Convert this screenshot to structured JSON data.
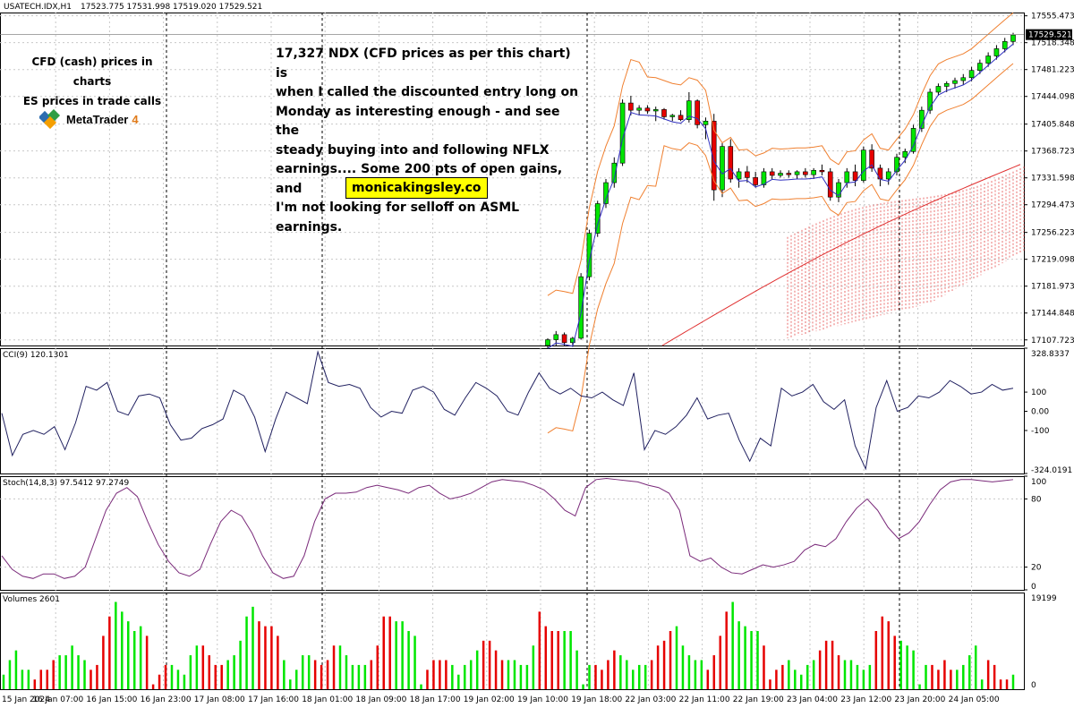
{
  "header": {
    "symbol": "USATECH.IDX,H1",
    "ohlc": "17523.775 17531.998 17519.020 17529.521"
  },
  "annotations": {
    "left_line1": "CFD (cash) prices in charts",
    "left_line2": "ES prices in trade calls",
    "logo_text": "MetaTrader",
    "logo_num": "4",
    "big_note_lines": [
      "17,327 NDX (CFD prices as per this chart) is",
      "when I called the discounted entry long on",
      "Monday as interesting enough - and see the",
      "steady buying into and following NFLX",
      "earnings.... Some 200 pts of open gains, and",
      "I'm not looking for selloff on ASML earnings."
    ],
    "website": "monicakingsley.co"
  },
  "colors": {
    "bull": "#00e600",
    "bear": "#e60000",
    "band": "#f08030",
    "ma_fast": "#3030c0",
    "ma_slow": "#e03030",
    "cloud": "#e03030",
    "cci": "#202060",
    "stoch": "#7a2a7a",
    "grid": "#c8c8c8"
  },
  "chart_data": [
    {
      "type": "candlestick",
      "panel": "price",
      "current_price": "17529.521",
      "y_ticks": [
        "17555.473",
        "17518.348",
        "17481.223",
        "17444.098",
        "17405.848",
        "17368.723",
        "17331.598",
        "17294.473",
        "17256.223",
        "17219.098",
        "17181.973",
        "17144.848",
        "17107.723"
      ],
      "ylim": [
        17100,
        17560
      ],
      "x_ticks": [
        "15 Jan 2024",
        "16 Jan 07:00",
        "16 Jan 15:00",
        "16 Jan 23:00",
        "17 Jan 08:00",
        "17 Jan 16:00",
        "18 Jan 01:00",
        "18 Jan 09:00",
        "18 Jan 17:00",
        "19 Jan 02:00",
        "19 Jan 10:00",
        "19 Jan 18:00",
        "22 Jan 03:00",
        "22 Jan 11:00",
        "22 Jan 19:00",
        "23 Jan 04:00",
        "23 Jan 12:00",
        "23 Jan 20:00",
        "24 Jan 05:00"
      ],
      "candles": [
        [
          17100,
          17110,
          17095,
          17108
        ],
        [
          17108,
          17120,
          17100,
          17115
        ],
        [
          17115,
          17118,
          17100,
          17104
        ],
        [
          17104,
          17112,
          17098,
          17110
        ],
        [
          17110,
          17200,
          17108,
          17195
        ],
        [
          17195,
          17260,
          17190,
          17255
        ],
        [
          17255,
          17300,
          17250,
          17296
        ],
        [
          17296,
          17330,
          17290,
          17325
        ],
        [
          17325,
          17360,
          17318,
          17352
        ],
        [
          17352,
          17440,
          17348,
          17435
        ],
        [
          17435,
          17445,
          17418,
          17425
        ],
        [
          17425,
          17432,
          17418,
          17428
        ],
        [
          17428,
          17432,
          17420,
          17424
        ],
        [
          17424,
          17430,
          17410,
          17426
        ],
        [
          17426,
          17428,
          17412,
          17416
        ],
        [
          17416,
          17420,
          17410,
          17418
        ],
        [
          17418,
          17425,
          17410,
          17412
        ],
        [
          17412,
          17450,
          17408,
          17438
        ],
        [
          17438,
          17440,
          17400,
          17405
        ],
        [
          17405,
          17415,
          17385,
          17410
        ],
        [
          17410,
          17420,
          17300,
          17315
        ],
        [
          17315,
          17380,
          17305,
          17375
        ],
        [
          17375,
          17385,
          17325,
          17330
        ],
        [
          17330,
          17345,
          17318,
          17340
        ],
        [
          17340,
          17348,
          17325,
          17332
        ],
        [
          17332,
          17340,
          17318,
          17322
        ],
        [
          17322,
          17345,
          17318,
          17340
        ],
        [
          17340,
          17345,
          17330,
          17335
        ],
        [
          17335,
          17342,
          17332,
          17338
        ],
        [
          17338,
          17342,
          17332,
          17336
        ],
        [
          17336,
          17342,
          17330,
          17340
        ],
        [
          17340,
          17345,
          17332,
          17336
        ],
        [
          17336,
          17345,
          17330,
          17342
        ],
        [
          17342,
          17350,
          17335,
          17340
        ],
        [
          17340,
          17345,
          17300,
          17305
        ],
        [
          17305,
          17330,
          17298,
          17325
        ],
        [
          17325,
          17345,
          17318,
          17340
        ],
        [
          17340,
          17350,
          17320,
          17328
        ],
        [
          17328,
          17375,
          17325,
          17370
        ],
        [
          17370,
          17378,
          17340,
          17345
        ],
        [
          17345,
          17350,
          17320,
          17330
        ],
        [
          17330,
          17345,
          17322,
          17340
        ],
        [
          17340,
          17365,
          17335,
          17360
        ],
        [
          17360,
          17372,
          17352,
          17368
        ],
        [
          17368,
          17405,
          17365,
          17400
        ],
        [
          17400,
          17430,
          17395,
          17425
        ],
        [
          17425,
          17455,
          17420,
          17450
        ],
        [
          17450,
          17462,
          17445,
          17458
        ],
        [
          17458,
          17465,
          17450,
          17462
        ],
        [
          17462,
          17470,
          17455,
          17466
        ],
        [
          17466,
          17475,
          17460,
          17470
        ],
        [
          17470,
          17485,
          17465,
          17480
        ],
        [
          17480,
          17495,
          17475,
          17490
        ],
        [
          17490,
          17505,
          17485,
          17500
        ],
        [
          17500,
          17515,
          17495,
          17510
        ],
        [
          17510,
          17525,
          17505,
          17520
        ],
        [
          17520,
          17532,
          17515,
          17529
        ]
      ]
    },
    {
      "type": "line",
      "panel": "cci",
      "name": "CCI(9) 120.1301",
      "y_ticks": [
        "328.8337",
        "100",
        "0.00",
        "-100",
        "-324.0191"
      ],
      "ylim": [
        -324.0191,
        328.8337
      ],
      "values": [
        -10,
        -230,
        -120,
        -100,
        -120,
        -80,
        -200,
        -60,
        130,
        110,
        150,
        0,
        -20,
        80,
        90,
        70,
        -70,
        -150,
        -140,
        -90,
        -70,
        -40,
        110,
        80,
        -30,
        -210,
        -40,
        100,
        70,
        40,
        310,
        150,
        130,
        140,
        120,
        20,
        -30,
        0,
        -10,
        110,
        130,
        100,
        10,
        -20,
        70,
        150,
        120,
        80,
        0,
        -20,
        100,
        200,
        120,
        90,
        120,
        80,
        70,
        100,
        60,
        30,
        200,
        -200,
        -100,
        -120,
        -80,
        -20,
        70,
        -40,
        -20,
        -10,
        -150,
        -260,
        -140,
        -180,
        120,
        80,
        100,
        140,
        50,
        10,
        60,
        -180,
        -300,
        20,
        160,
        0,
        20,
        80,
        70,
        100,
        160,
        130,
        90,
        100,
        140,
        110,
        120
      ]
    },
    {
      "type": "line",
      "panel": "stochastic",
      "name": "Stoch(14,8,3) 97.5412 97.2749",
      "y_ticks": [
        "100",
        "80",
        "20",
        "0"
      ],
      "ylim": [
        0,
        100
      ],
      "values": [
        30,
        18,
        12,
        10,
        14,
        14,
        10,
        12,
        20,
        45,
        70,
        85,
        90,
        82,
        60,
        40,
        25,
        15,
        12,
        18,
        40,
        60,
        70,
        65,
        50,
        30,
        15,
        10,
        12,
        30,
        60,
        80,
        85,
        85,
        86,
        90,
        92,
        90,
        88,
        85,
        90,
        92,
        85,
        80,
        82,
        85,
        90,
        95,
        97,
        96,
        95,
        92,
        88,
        80,
        70,
        65,
        90,
        97,
        98,
        97,
        96,
        95,
        92,
        90,
        85,
        70,
        30,
        25,
        28,
        20,
        15,
        14,
        18,
        22,
        20,
        22,
        25,
        35,
        40,
        38,
        45,
        60,
        72,
        80,
        70,
        55,
        45,
        50,
        60,
        75,
        88,
        95,
        97,
        97,
        96,
        95,
        96,
        97
      ]
    },
    {
      "type": "bar",
      "panel": "volume",
      "name": "Volumes 2601",
      "y_ticks": [
        "19199",
        "0"
      ],
      "ylim": [
        0,
        19199
      ],
      "values": [
        3000,
        6000,
        8000,
        4000,
        4000,
        2000,
        4000,
        4000,
        6000,
        7000,
        7000,
        9000,
        7000,
        6000,
        4000,
        5000,
        11000,
        15000,
        18000,
        16000,
        14000,
        12000,
        13000,
        11000,
        1000,
        3000,
        5000,
        5000,
        4000,
        3000,
        7000,
        9000,
        9000,
        7000,
        5000,
        5000,
        6000,
        7000,
        10000,
        15000,
        17000,
        14000,
        13000,
        13000,
        11000,
        6000,
        2000,
        4000,
        7000,
        7000,
        6000,
        5000,
        6000,
        9000,
        9000,
        7000,
        5000,
        5000,
        5000,
        6000,
        9000,
        15000,
        15000,
        14000,
        14000,
        12000,
        11000,
        1000,
        4000,
        6000,
        6000,
        6000,
        5000,
        3000,
        5000,
        6000,
        8000,
        10000,
        10000,
        8000,
        6000,
        6000,
        6000,
        5000,
        5000,
        9000,
        16000,
        13000,
        12000,
        12000,
        12000,
        12000,
        8000,
        1000,
        5000,
        5000,
        4000,
        6000,
        8000,
        7000,
        6000,
        4000,
        5000,
        5000,
        6000,
        9000,
        10000,
        12000,
        13000,
        9000,
        7000,
        6000,
        6000,
        4000,
        7000,
        11000,
        16000,
        18000,
        14000,
        13000,
        12000,
        12000,
        9000,
        2000,
        4000,
        5000,
        6000,
        4000,
        3000,
        5000,
        6000,
        8000,
        10000,
        10000,
        7000,
        6000,
        6000,
        5000,
        4000,
        5000,
        12000,
        15000,
        14000,
        11000,
        10000,
        9000,
        8000,
        1000,
        5000,
        5000,
        4000,
        6000,
        4000,
        4000,
        5000,
        7000,
        9000,
        2000,
        6000,
        5000,
        2000,
        2000,
        3000
      ]
    }
  ]
}
